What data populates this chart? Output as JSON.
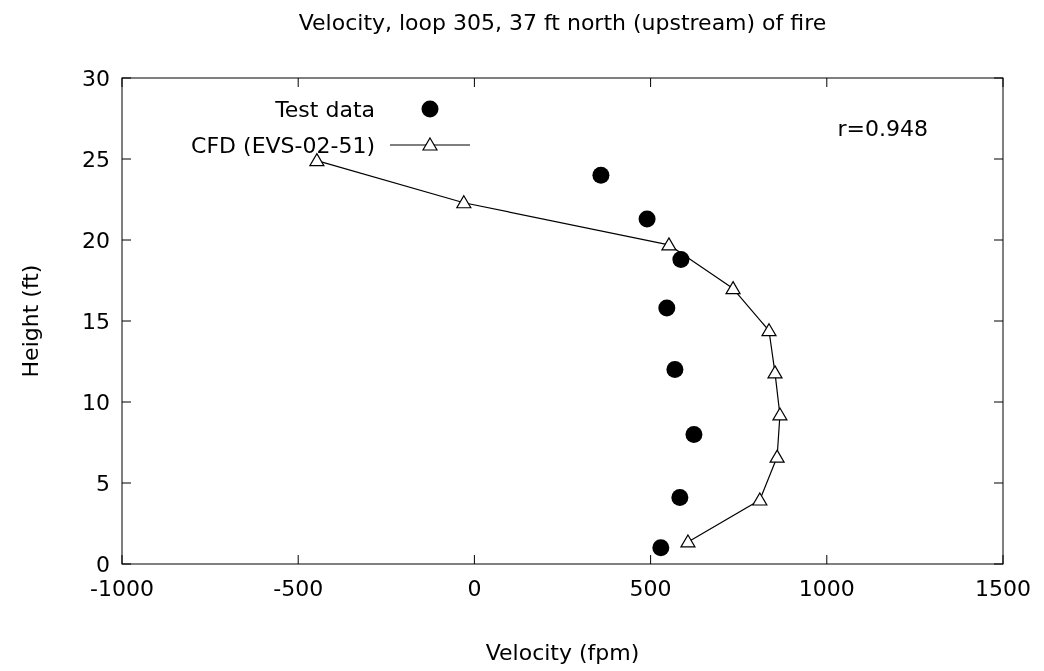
{
  "chart_data": {
    "type": "scatter",
    "title": "Velocity, loop 305, 37 ft north (upstream) of fire",
    "xlabel": "Velocity (fpm)",
    "ylabel": "Height (ft)",
    "xlim": [
      -1000,
      1500
    ],
    "xticks": [
      -1000,
      -500,
      0,
      500,
      1000,
      1500
    ],
    "ylim": [
      0,
      30
    ],
    "yticks": [
      0,
      5,
      10,
      15,
      20,
      25,
      30
    ],
    "legend": "top left",
    "grid": false,
    "annotations": [
      "r=0.948"
    ],
    "series": [
      {
        "name": "Test data",
        "marker": "circle",
        "color": "#000000",
        "x": [
          359,
          490,
          586,
          546,
          569,
          623,
          583,
          529
        ],
        "values": [
          24.0,
          21.3,
          18.8,
          15.8,
          12.0,
          8.0,
          4.1,
          1.0
        ]
      },
      {
        "name": "CFD (EVS-02-51)",
        "type": "line",
        "marker": "triangle",
        "line_style": "solid",
        "color": "#000000",
        "x": [
          -447,
          -30,
          552,
          734,
          836,
          853,
          867,
          859,
          810,
          606
        ],
        "values": [
          24.9,
          22.3,
          19.7,
          17.0,
          14.4,
          11.8,
          9.2,
          6.6,
          3.95,
          1.36
        ]
      }
    ]
  }
}
